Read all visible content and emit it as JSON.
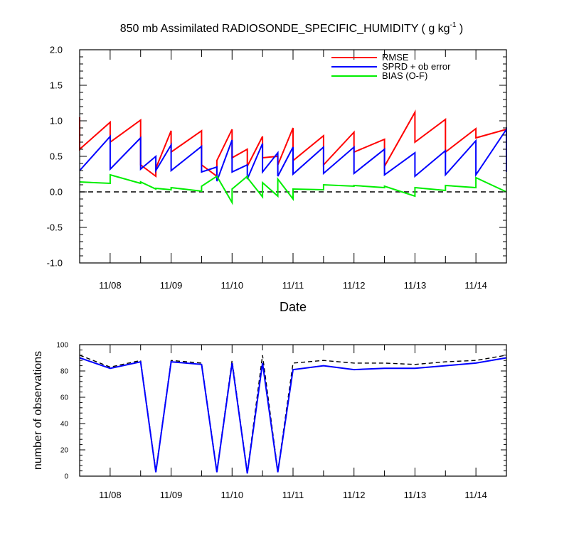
{
  "chart_data": [
    {
      "type": "line",
      "title": "850 mb Assimilated RADIOSONDE_SPECIFIC_HUMIDITY ( g kg",
      "title_exponent": "-1",
      "title_close": " )",
      "xlabel": "Date",
      "ylabel": "",
      "xlim": [
        0,
        7
      ],
      "ylim": [
        -1.0,
        2.0
      ],
      "x_ticks": [
        0.5,
        1.5,
        2.5,
        3.5,
        4.5,
        5.5,
        6.5
      ],
      "x_tick_labels": [
        "11/08",
        "11/09",
        "11/10",
        "11/11",
        "11/12",
        "11/13",
        "11/14"
      ],
      "y_ticks": [
        -1.0,
        -0.5,
        0.0,
        0.5,
        1.0,
        1.5,
        2.0
      ],
      "y_tick_labels": [
        "-1.0",
        "-0.5",
        "0.0",
        "0.5",
        "1.0",
        "1.5",
        "2.0"
      ],
      "reference_line": {
        "y": 0.0,
        "style": "dashed",
        "color": "#000000"
      },
      "legend_position": "top-right",
      "series": [
        {
          "name": "RMSE",
          "color": "#ff0000",
          "x": [
            0.0,
            0.0,
            0.5,
            0.5,
            1.0,
            1.0,
            1.25,
            1.25,
            1.5,
            1.5,
            2.0,
            2.0,
            2.25,
            2.25,
            2.5,
            2.5,
            2.75,
            2.75,
            3.0,
            3.0,
            3.25,
            3.25,
            3.5,
            3.5,
            4.0,
            4.0,
            4.5,
            4.5,
            5.0,
            5.0,
            5.5,
            5.5,
            6.0,
            6.0,
            6.5,
            6.5,
            7.0
          ],
          "y": [
            1.05,
            0.6,
            0.98,
            0.7,
            1.01,
            0.38,
            0.22,
            0.33,
            0.86,
            0.56,
            0.86,
            0.38,
            0.22,
            0.44,
            0.88,
            0.48,
            0.6,
            0.36,
            0.78,
            0.48,
            0.5,
            0.38,
            0.9,
            0.44,
            0.79,
            0.38,
            0.84,
            0.56,
            0.74,
            0.36,
            1.12,
            0.7,
            1.02,
            0.56,
            0.89,
            0.76,
            0.88
          ]
        },
        {
          "name": "SPRD + ob error",
          "color": "#0000ff",
          "x": [
            0.0,
            0.5,
            0.5,
            1.0,
            1.0,
            1.25,
            1.25,
            1.5,
            1.5,
            2.0,
            2.0,
            2.25,
            2.25,
            2.5,
            2.5,
            2.75,
            2.75,
            3.0,
            3.0,
            3.25,
            3.25,
            3.5,
            3.5,
            4.0,
            4.0,
            4.5,
            4.5,
            5.0,
            5.0,
            5.5,
            5.5,
            6.0,
            6.0,
            6.5,
            6.5,
            7.0,
            7.0
          ],
          "y": [
            0.3,
            0.78,
            0.32,
            0.76,
            0.32,
            0.5,
            0.3,
            0.66,
            0.3,
            0.64,
            0.28,
            0.35,
            0.15,
            0.73,
            0.28,
            0.38,
            0.18,
            0.68,
            0.28,
            0.55,
            0.22,
            0.63,
            0.25,
            0.63,
            0.26,
            0.63,
            0.26,
            0.6,
            0.24,
            0.55,
            0.22,
            0.58,
            0.24,
            0.72,
            0.24,
            0.88,
            0.28
          ]
        },
        {
          "name": "BIAS (O-F)",
          "color": "#00ee00",
          "x": [
            0.0,
            0.5,
            0.5,
            1.0,
            1.0,
            1.25,
            1.25,
            1.5,
            1.5,
            2.0,
            2.0,
            2.25,
            2.25,
            2.5,
            2.5,
            2.75,
            2.75,
            3.0,
            3.0,
            3.25,
            3.25,
            3.5,
            3.5,
            4.0,
            4.0,
            4.5,
            4.5,
            5.0,
            5.0,
            5.5,
            5.5,
            6.0,
            6.0,
            6.5,
            6.5,
            7.0
          ],
          "y": [
            0.14,
            0.12,
            0.24,
            0.12,
            0.14,
            0.04,
            0.05,
            0.03,
            0.06,
            0.01,
            0.08,
            0.22,
            0.22,
            -0.15,
            0.04,
            0.22,
            0.2,
            -0.07,
            0.13,
            -0.06,
            0.18,
            -0.1,
            0.04,
            0.03,
            0.1,
            0.08,
            0.09,
            0.06,
            0.08,
            -0.06,
            0.06,
            0.02,
            0.09,
            0.06,
            0.2,
            0.0
          ]
        }
      ]
    },
    {
      "type": "line",
      "title": "",
      "xlabel": "",
      "ylabel": "number of observations",
      "xlim": [
        0,
        7
      ],
      "ylim": [
        0,
        100
      ],
      "x_ticks": [
        0.5,
        1.5,
        2.5,
        3.5,
        4.5,
        5.5,
        6.5
      ],
      "x_tick_labels": [
        "11/08",
        "11/09",
        "11/10",
        "11/11",
        "11/12",
        "11/13",
        "11/14"
      ],
      "y_ticks": [
        0,
        20,
        40,
        60,
        80,
        100
      ],
      "y_tick_labels": [
        "0",
        "20",
        "40",
        "60",
        "80",
        "100"
      ],
      "series": [
        {
          "name": "",
          "color": "#000000",
          "style": "dashed",
          "x": [
            0.0,
            0.5,
            1.0,
            1.25,
            1.5,
            2.0,
            2.25,
            2.5,
            2.75,
            3.0,
            3.25,
            3.5,
            4.0,
            4.5,
            5.0,
            5.5,
            6.0,
            6.5,
            7.0
          ],
          "y": [
            92,
            83,
            88,
            4,
            88,
            86,
            4,
            88,
            3,
            92,
            4,
            86,
            88,
            86,
            86,
            85,
            87,
            88,
            92
          ]
        },
        {
          "name": "",
          "color": "#0000ff",
          "style": "solid",
          "x": [
            0.0,
            0.5,
            1.0,
            1.25,
            1.5,
            2.0,
            2.25,
            2.5,
            2.75,
            3.0,
            3.25,
            3.5,
            4.0,
            4.5,
            5.0,
            5.5,
            6.0,
            6.5,
            7.0
          ],
          "y": [
            90,
            82,
            87,
            3,
            87,
            85,
            3,
            86,
            2,
            86,
            3,
            81,
            84,
            81,
            82,
            82,
            84,
            86,
            90
          ]
        }
      ]
    }
  ]
}
